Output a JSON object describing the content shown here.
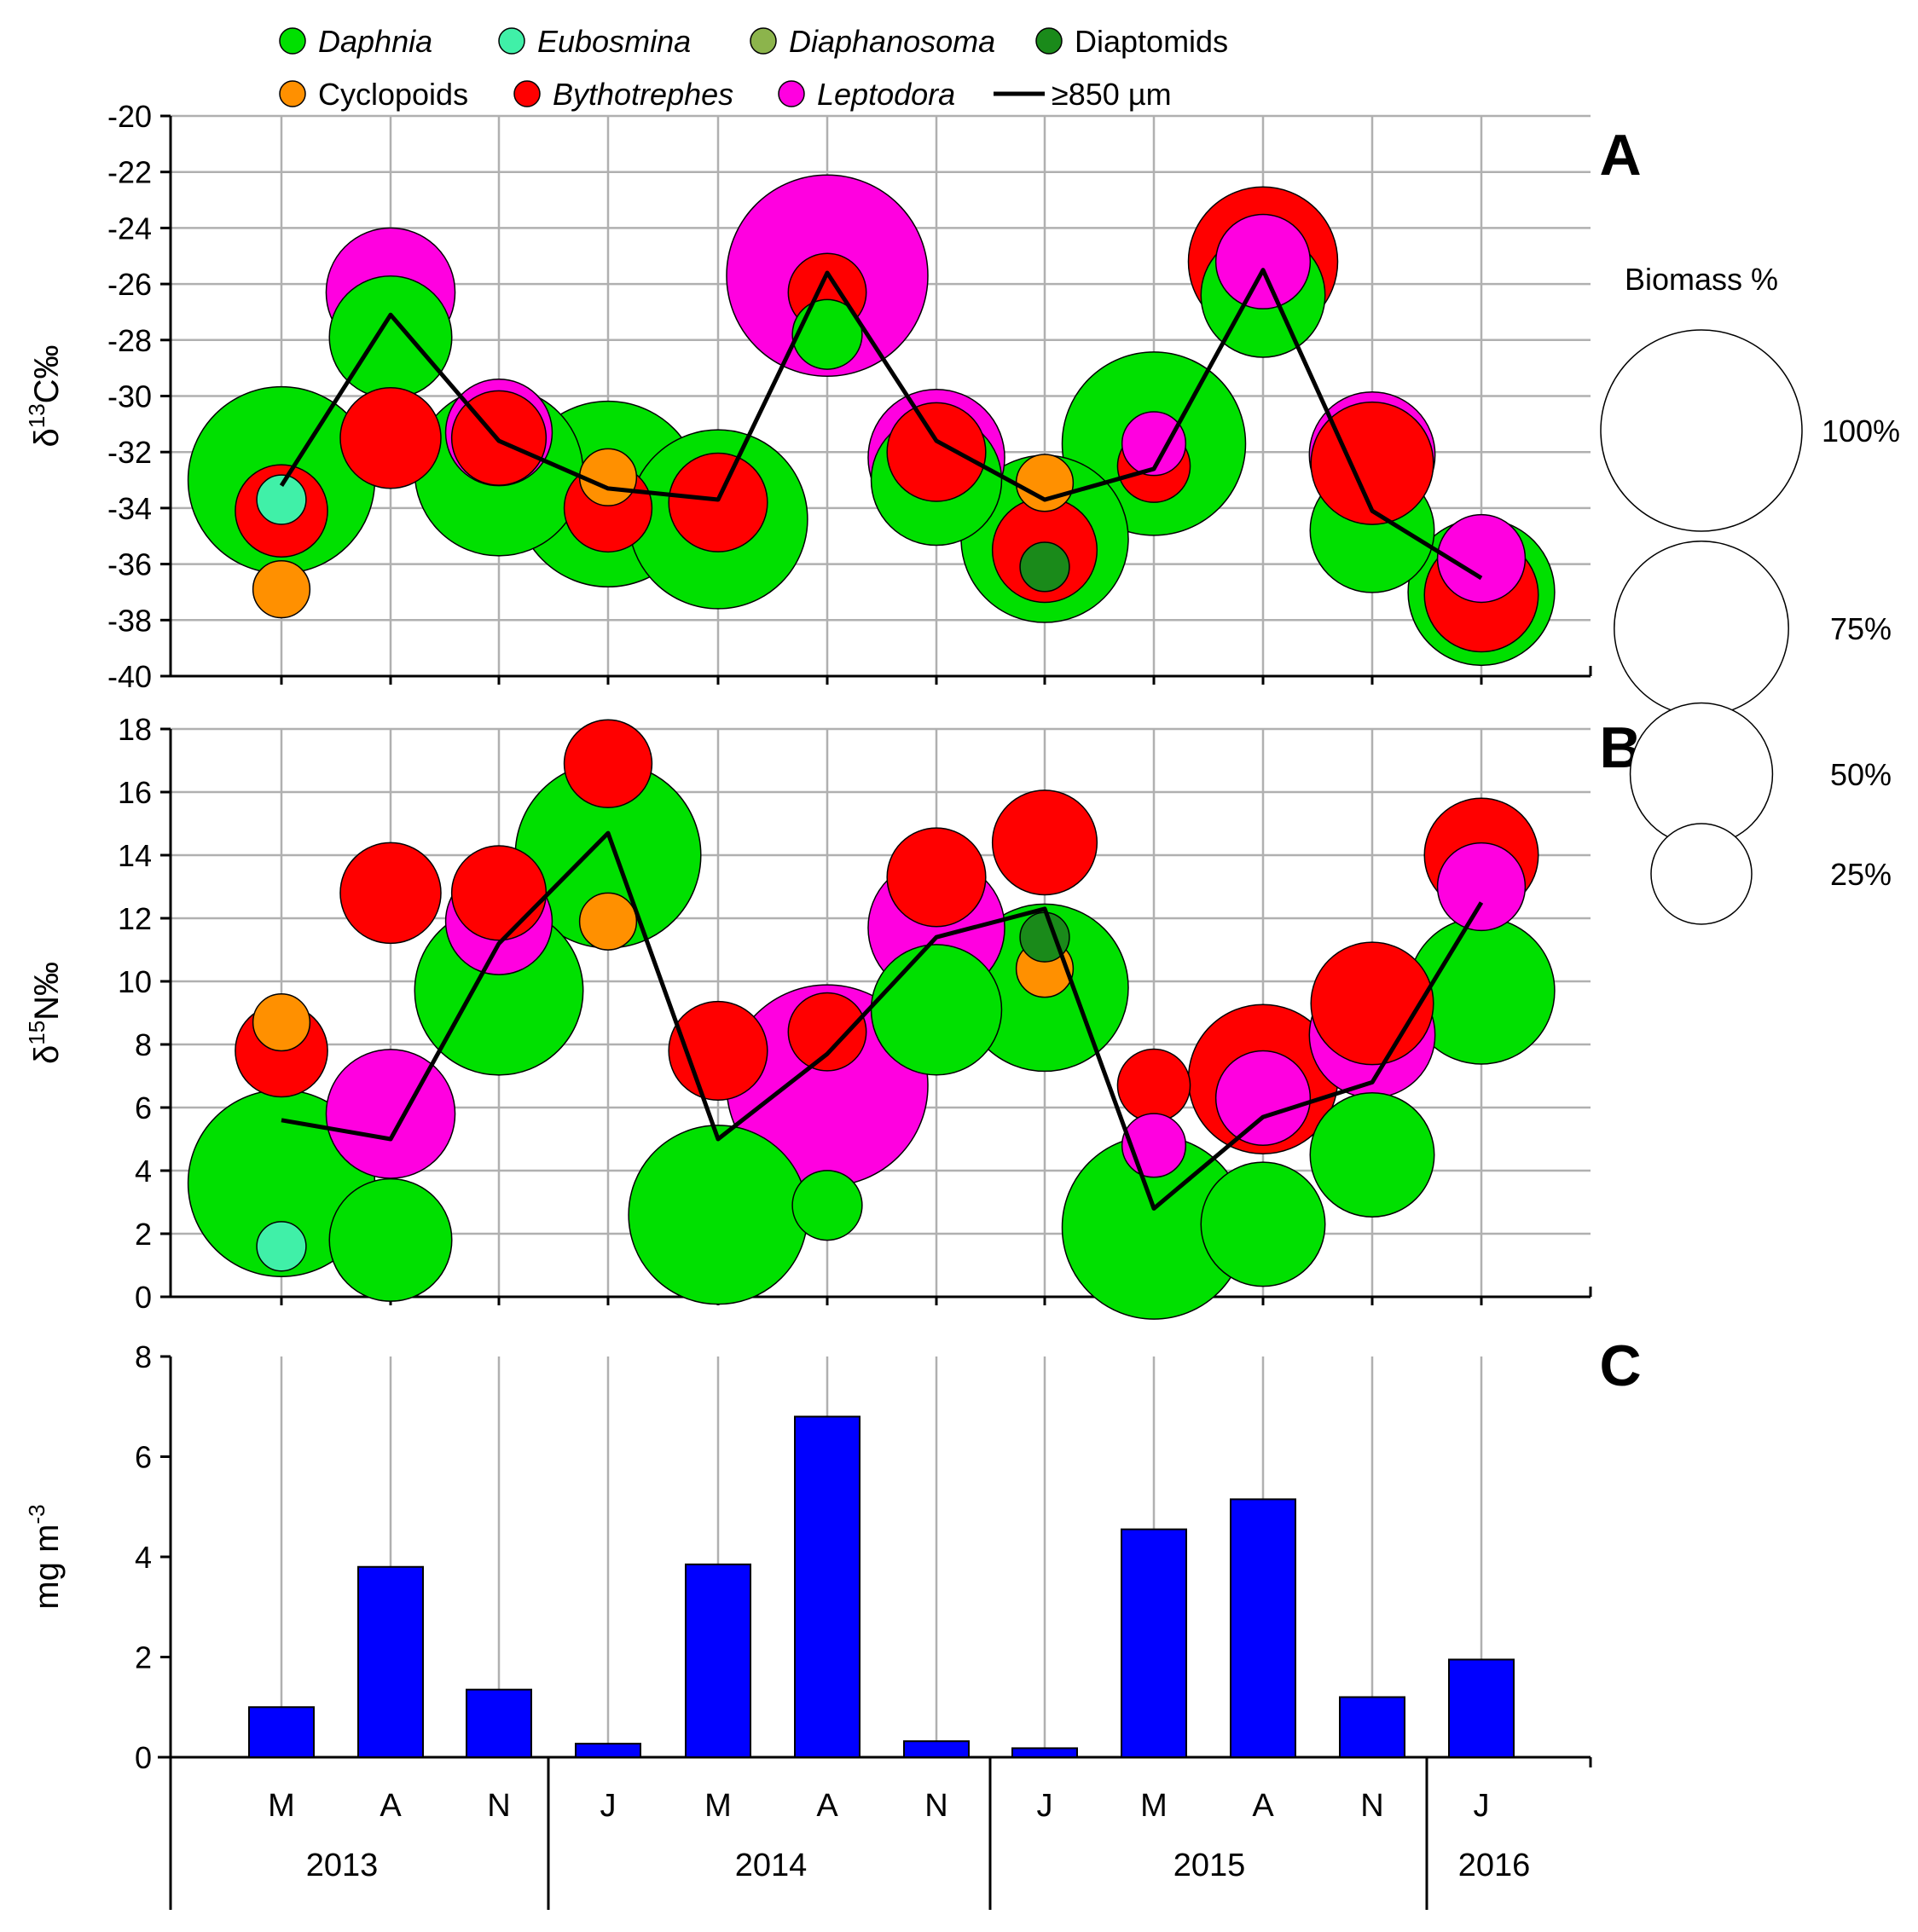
{
  "legend": [
    {
      "name": "Daphnia",
      "color": "#00e000",
      "italic": true,
      "type": "circle"
    },
    {
      "name": "Eubosmina",
      "color": "#40f0a8",
      "italic": true,
      "type": "circle"
    },
    {
      "name": "Diaphanosoma",
      "color": "#8cb44c",
      "italic": true,
      "type": "circle"
    },
    {
      "name": "Diaptomids",
      "color": "#1a8a1a",
      "italic": false,
      "type": "circle"
    },
    {
      "name": "Cyclopoids",
      "color": "#ff9000",
      "italic": false,
      "type": "circle"
    },
    {
      "name": "Bythotrephes",
      "color": "#ff0000",
      "italic": true,
      "type": "circle"
    },
    {
      "name": "Leptodora",
      "color": "#ff00e0",
      "italic": true,
      "type": "circle"
    },
    {
      "name": "≥850 µm",
      "color": "#000000",
      "italic": false,
      "type": "line"
    }
  ],
  "biomass_legend": {
    "title": "Biomass %",
    "items": [
      {
        "label": "100%",
        "value": 100
      },
      {
        "label": "75%",
        "value": 75
      },
      {
        "label": "50%",
        "value": 50
      },
      {
        "label": "25%",
        "value": 25
      }
    ]
  },
  "panels": {
    "A": {
      "letter": "A",
      "ylabel_prefix": "δ",
      "ylabel_sup": "13",
      "ylabel_suffix": "C‰"
    },
    "B": {
      "letter": "B",
      "ylabel_prefix": "δ",
      "ylabel_sup": "15",
      "ylabel_suffix": "N‰"
    },
    "C": {
      "letter": "C",
      "ylabel_base": "mg m",
      "ylabel_sup": "-3"
    }
  },
  "x_axis": {
    "months": [
      "M",
      "A",
      "N",
      "J",
      "M",
      "A",
      "N",
      "J",
      "M",
      "A",
      "N",
      "J"
    ],
    "years": [
      {
        "label": "2013",
        "from": 0,
        "to": 3
      },
      {
        "label": "2014",
        "from": 3,
        "to": 7
      },
      {
        "label": "2015",
        "from": 7,
        "to": 11
      },
      {
        "label": "2016",
        "from": 11,
        "to": 12
      }
    ]
  },
  "chart_data": [
    {
      "type": "scatter",
      "panel": "A",
      "title": "",
      "ylabel": "δ13C‰",
      "ylim": [
        -40,
        -20
      ],
      "yticks": [
        -20,
        -22,
        -24,
        -26,
        -28,
        -30,
        -32,
        -34,
        -36,
        -38,
        -40
      ],
      "categories": [
        "M",
        "A",
        "N",
        "J",
        "M",
        "A",
        "N",
        "J",
        "M",
        "A",
        "N",
        "J"
      ],
      "line_850um": [
        -33.2,
        -27.1,
        -31.6,
        -33.3,
        -33.7,
        -25.6,
        -31.6,
        -33.7,
        -32.6,
        -25.5,
        -34.1,
        -36.5
      ],
      "bubbles": [
        {
          "x": 0,
          "taxon": "Daphnia",
          "y": -33.0,
          "biomass": 86
        },
        {
          "x": 0,
          "taxon": "Bythotrephes",
          "y": -34.1,
          "biomass": 21
        },
        {
          "x": 0,
          "taxon": "Eubosmina",
          "y": -33.7,
          "biomass": 6
        },
        {
          "x": 0,
          "taxon": "Cyclopoids",
          "y": -36.9,
          "biomass": 8
        },
        {
          "x": 1,
          "taxon": "Daphnia",
          "y": -27.9,
          "biomass": 37
        },
        {
          "x": 1,
          "taxon": "Leptodora",
          "y": -26.3,
          "biomass": 41
        },
        {
          "x": 1,
          "taxon": "Bythotrephes",
          "y": -31.5,
          "biomass": 25
        },
        {
          "x": 2,
          "taxon": "Daphnia",
          "y": -32.7,
          "biomass": 70
        },
        {
          "x": 2,
          "taxon": "Leptodora",
          "y": -31.3,
          "biomass": 28
        },
        {
          "x": 2,
          "taxon": "Bythotrephes",
          "y": -31.5,
          "biomass": 22
        },
        {
          "x": 3,
          "taxon": "Daphnia",
          "y": -33.5,
          "biomass": 85
        },
        {
          "x": 3,
          "taxon": "Bythotrephes",
          "y": -34.0,
          "biomass": 19
        },
        {
          "x": 3,
          "taxon": "Cyclopoids",
          "y": -32.9,
          "biomass": 8
        },
        {
          "x": 4,
          "taxon": "Daphnia",
          "y": -34.4,
          "biomass": 79
        },
        {
          "x": 4,
          "taxon": "Bythotrephes",
          "y": -33.8,
          "biomass": 24
        },
        {
          "x": 5,
          "taxon": "Leptodora",
          "y": -25.7,
          "biomass": 100
        },
        {
          "x": 5,
          "taxon": "Bythotrephes",
          "y": -26.3,
          "biomass": 15
        },
        {
          "x": 5,
          "taxon": "Daphnia",
          "y": -27.8,
          "biomass": 12
        },
        {
          "x": 6,
          "taxon": "Daphnia",
          "y": -33.0,
          "biomass": 42
        },
        {
          "x": 6,
          "taxon": "Leptodora",
          "y": -32.2,
          "biomass": 46
        },
        {
          "x": 6,
          "taxon": "Bythotrephes",
          "y": -32.0,
          "biomass": 24
        },
        {
          "x": 7,
          "taxon": "Daphnia",
          "y": -35.1,
          "biomass": 69
        },
        {
          "x": 7,
          "taxon": "Bythotrephes",
          "y": -35.5,
          "biomass": 27
        },
        {
          "x": 7,
          "taxon": "Cyclopoids",
          "y": -33.1,
          "biomass": 8
        },
        {
          "x": 7,
          "taxon": "Diaptomids",
          "y": -36.1,
          "biomass": 6
        },
        {
          "x": 8,
          "taxon": "Daphnia",
          "y": -31.7,
          "biomass": 83
        },
        {
          "x": 8,
          "taxon": "Bythotrephes",
          "y": -32.5,
          "biomass": 13
        },
        {
          "x": 8,
          "taxon": "Leptodora",
          "y": -31.7,
          "biomass": 10
        },
        {
          "x": 9,
          "taxon": "Daphnia",
          "y": -26.4,
          "biomass": 38
        },
        {
          "x": 9,
          "taxon": "Bythotrephes",
          "y": -25.2,
          "biomass": 55
        },
        {
          "x": 9,
          "taxon": "Leptodora",
          "y": -25.2,
          "biomass": 22
        },
        {
          "x": 10,
          "taxon": "Daphnia",
          "y": -34.8,
          "biomass": 38
        },
        {
          "x": 10,
          "taxon": "Leptodora",
          "y": -32.1,
          "biomass": 39
        },
        {
          "x": 10,
          "taxon": "Bythotrephes",
          "y": -32.4,
          "biomass": 37
        },
        {
          "x": 11,
          "taxon": "Daphnia",
          "y": -37.0,
          "biomass": 53
        },
        {
          "x": 11,
          "taxon": "Bythotrephes",
          "y": -37.1,
          "biomass": 32
        },
        {
          "x": 11,
          "taxon": "Leptodora",
          "y": -35.8,
          "biomass": 19
        }
      ]
    },
    {
      "type": "scatter",
      "panel": "B",
      "title": "",
      "ylabel": "δ15N‰",
      "ylim": [
        0,
        18
      ],
      "yticks": [
        0,
        2,
        4,
        6,
        8,
        10,
        12,
        14,
        16,
        18
      ],
      "categories": [
        "M",
        "A",
        "N",
        "J",
        "M",
        "A",
        "N",
        "J",
        "M",
        "A",
        "N",
        "J"
      ],
      "line_850um": [
        5.6,
        5.0,
        11.2,
        14.7,
        5.0,
        7.7,
        11.4,
        12.3,
        2.8,
        5.7,
        6.8,
        12.5
      ],
      "bubbles": [
        {
          "x": 0,
          "taxon": "Daphnia",
          "y": 3.6,
          "biomass": 86
        },
        {
          "x": 0,
          "taxon": "Eubosmina",
          "y": 1.6,
          "biomass": 6
        },
        {
          "x": 0,
          "taxon": "Bythotrephes",
          "y": 7.8,
          "biomass": 21
        },
        {
          "x": 0,
          "taxon": "Cyclopoids",
          "y": 8.7,
          "biomass": 8
        },
        {
          "x": 1,
          "taxon": "Daphnia",
          "y": 1.8,
          "biomass": 37
        },
        {
          "x": 1,
          "taxon": "Leptodora",
          "y": 5.8,
          "biomass": 41
        },
        {
          "x": 1,
          "taxon": "Bythotrephes",
          "y": 12.8,
          "biomass": 25
        },
        {
          "x": 2,
          "taxon": "Daphnia",
          "y": 9.7,
          "biomass": 70
        },
        {
          "x": 2,
          "taxon": "Leptodora",
          "y": 11.9,
          "biomass": 28
        },
        {
          "x": 2,
          "taxon": "Bythotrephes",
          "y": 12.8,
          "biomass": 22
        },
        {
          "x": 3,
          "taxon": "Daphnia",
          "y": 14.0,
          "biomass": 85
        },
        {
          "x": 3,
          "taxon": "Bythotrephes",
          "y": 16.9,
          "biomass": 19
        },
        {
          "x": 3,
          "taxon": "Cyclopoids",
          "y": 11.9,
          "biomass": 8
        },
        {
          "x": 4,
          "taxon": "Daphnia",
          "y": 2.6,
          "biomass": 79
        },
        {
          "x": 4,
          "taxon": "Bythotrephes",
          "y": 7.8,
          "biomass": 24
        },
        {
          "x": 5,
          "taxon": "Leptodora",
          "y": 6.7,
          "biomass": 100
        },
        {
          "x": 5,
          "taxon": "Bythotrephes",
          "y": 8.4,
          "biomass": 15
        },
        {
          "x": 5,
          "taxon": "Daphnia",
          "y": 2.9,
          "biomass": 12
        },
        {
          "x": 6,
          "taxon": "Daphnia",
          "y": 9.1,
          "biomass": 42
        },
        {
          "x": 6,
          "taxon": "Leptodora",
          "y": 11.7,
          "biomass": 46
        },
        {
          "x": 6,
          "taxon": "Bythotrephes",
          "y": 13.3,
          "biomass": 24
        },
        {
          "x": 7,
          "taxon": "Daphnia",
          "y": 9.8,
          "biomass": 69
        },
        {
          "x": 7,
          "taxon": "Bythotrephes",
          "y": 14.4,
          "biomass": 27
        },
        {
          "x": 7,
          "taxon": "Diaptomids",
          "y": 11.4,
          "biomass": 6
        },
        {
          "x": 7,
          "taxon": "Cyclopoids",
          "y": 10.4,
          "biomass": 8
        },
        {
          "x": 8,
          "taxon": "Daphnia",
          "y": 2.2,
          "biomass": 83
        },
        {
          "x": 8,
          "taxon": "Bythotrephes",
          "y": 6.7,
          "biomass": 13
        },
        {
          "x": 8,
          "taxon": "Leptodora",
          "y": 4.8,
          "biomass": 10
        },
        {
          "x": 9,
          "taxon": "Daphnia",
          "y": 2.3,
          "biomass": 38
        },
        {
          "x": 9,
          "taxon": "Bythotrephes",
          "y": 6.9,
          "biomass": 55
        },
        {
          "x": 9,
          "taxon": "Leptodora",
          "y": 6.3,
          "biomass": 22
        },
        {
          "x": 10,
          "taxon": "Daphnia",
          "y": 4.5,
          "biomass": 38
        },
        {
          "x": 10,
          "taxon": "Leptodora",
          "y": 8.3,
          "biomass": 39
        },
        {
          "x": 10,
          "taxon": "Bythotrephes",
          "y": 9.3,
          "biomass": 37
        },
        {
          "x": 11,
          "taxon": "Daphnia",
          "y": 9.7,
          "biomass": 53
        },
        {
          "x": 11,
          "taxon": "Bythotrephes",
          "y": 14.0,
          "biomass": 32
        },
        {
          "x": 11,
          "taxon": "Leptodora",
          "y": 13.0,
          "biomass": 19
        }
      ]
    },
    {
      "type": "bar",
      "panel": "C",
      "title": "",
      "ylabel": "mg m-3",
      "ylim": [
        0,
        8
      ],
      "yticks": [
        0,
        2,
        4,
        6,
        8
      ],
      "categories": [
        "M",
        "A",
        "N",
        "J",
        "M",
        "A",
        "N",
        "J",
        "M",
        "A",
        "N",
        "J"
      ],
      "values": [
        1.0,
        3.8,
        1.35,
        0.27,
        3.85,
        6.8,
        0.32,
        0.18,
        4.55,
        5.15,
        1.2,
        1.95
      ],
      "bar_color": "#0000ff"
    }
  ]
}
